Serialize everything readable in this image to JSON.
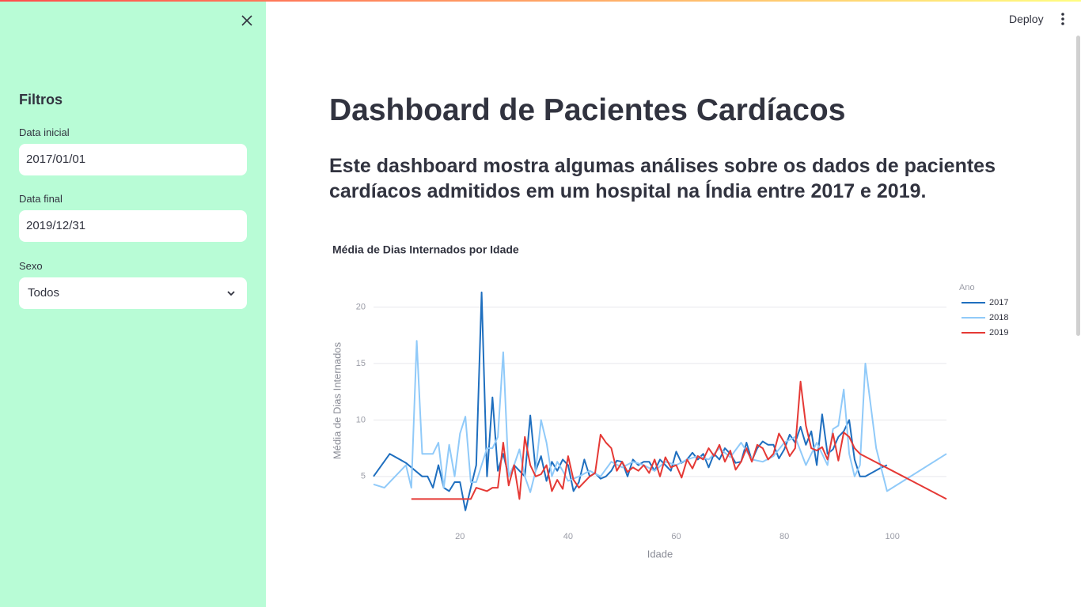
{
  "sidebar": {
    "title": "Filtros",
    "fields": [
      {
        "label": "Data inicial",
        "value": "2017/01/01"
      },
      {
        "label": "Data final",
        "value": "2019/12/31"
      },
      {
        "label": "Sexo",
        "value": "Todos"
      }
    ]
  },
  "toolbar": {
    "deploy": "Deploy"
  },
  "header": {
    "title": "Dashboard de Pacientes Cardíacos",
    "subtitle": "Este dashboard mostra algumas análises sobre os dados de pacientes cardíacos admitidos em um hospital na Índia entre 2017 e 2019."
  },
  "chart_data": {
    "type": "line",
    "title": "Média de Dias Internados por Idade",
    "x_label": "Idade",
    "y_label": "Média de Dias Internados",
    "legend_title": "Ano",
    "legend": "right",
    "grid": true,
    "xlim": [
      4,
      110
    ],
    "xticks": [
      20,
      40,
      60,
      80,
      100
    ],
    "ylim": [
      1,
      21.5
    ],
    "yticks": [
      5,
      10,
      15,
      20
    ],
    "series": [
      {
        "name": "2017",
        "color": "#1f6fbf",
        "x": [
          4,
          7,
          10,
          13,
          14,
          15,
          16,
          17,
          18,
          19,
          20,
          21,
          22,
          23,
          24,
          25,
          26,
          27,
          28,
          29,
          30,
          31,
          32,
          33,
          34,
          35,
          36,
          37,
          38,
          39,
          40,
          41,
          42,
          43,
          44,
          45,
          46,
          47,
          48,
          49,
          50,
          51,
          52,
          53,
          54,
          55,
          56,
          57,
          58,
          59,
          60,
          61,
          62,
          63,
          64,
          65,
          66,
          67,
          68,
          69,
          70,
          71,
          72,
          73,
          74,
          75,
          76,
          77,
          78,
          79,
          80,
          81,
          82,
          83,
          84,
          85,
          86,
          87,
          88,
          89,
          90,
          91,
          92,
          93,
          94,
          95,
          98,
          99
        ],
        "values": [
          5,
          7,
          6.2,
          5,
          5,
          4,
          6,
          4,
          3.7,
          4.5,
          4.5,
          2,
          4,
          6,
          21.3,
          5,
          12,
          5.5,
          7,
          5,
          6,
          5.5,
          5,
          10.4,
          5.5,
          6.8,
          4.6,
          6.3,
          5.5,
          6.5,
          6,
          3.7,
          4.5,
          6.5,
          5,
          5.3,
          4.8,
          5,
          5.5,
          6.4,
          6.3,
          5,
          6.5,
          6,
          6.3,
          6.3,
          5.5,
          6.5,
          6,
          5.5,
          7.2,
          6.2,
          6.5,
          7.1,
          6.5,
          7,
          5.8,
          7,
          6.5,
          7.5,
          7,
          6.2,
          6.3,
          8,
          6.4,
          7.5,
          8.1,
          7.8,
          7.8,
          6.6,
          7.4,
          8.7,
          8,
          9.4,
          7.8,
          9,
          6,
          10.5,
          7,
          7.4,
          8.5,
          9,
          10,
          6.5,
          5,
          5,
          5.8,
          6
        ]
      },
      {
        "name": "2018",
        "color": "#90caf9",
        "x": [
          4,
          6,
          10,
          11,
          12,
          13,
          15,
          16,
          17,
          18,
          19,
          20,
          21,
          22,
          23,
          25,
          26,
          27,
          28,
          29,
          30,
          31,
          32,
          33,
          34,
          35,
          36,
          37,
          38,
          39,
          40,
          42,
          44,
          46,
          48,
          50,
          52,
          54,
          56,
          58,
          60,
          62,
          64,
          66,
          68,
          70,
          72,
          74,
          76,
          78,
          80,
          82,
          84,
          86,
          88,
          89,
          90,
          91,
          92,
          93,
          94,
          95,
          97,
          99,
          110
        ],
        "values": [
          4.3,
          4,
          6,
          4,
          17,
          7,
          7,
          8,
          4,
          7.8,
          5,
          8.8,
          10.3,
          4.5,
          4.5,
          7.5,
          7.5,
          8.5,
          16,
          5,
          6,
          7.4,
          5,
          3.6,
          5.5,
          10,
          8,
          5,
          6.3,
          5.5,
          4.6,
          5,
          5.5,
          5,
          6.3,
          5.8,
          6.3,
          6,
          5.5,
          6.3,
          6,
          6.5,
          6.8,
          6.5,
          7.5,
          6.7,
          8,
          6.5,
          6.3,
          6.8,
          8,
          8.5,
          6,
          8,
          6,
          9.2,
          9.5,
          12.7,
          7,
          5,
          6,
          15,
          7.5,
          3.7,
          7
        ]
      },
      {
        "name": "2019",
        "color": "#e53935",
        "x": [
          11,
          20,
          22,
          23,
          25,
          26,
          27,
          28,
          29,
          30,
          31,
          32,
          33,
          34,
          35,
          36,
          37,
          38,
          39,
          40,
          41,
          42,
          44,
          45,
          46,
          47,
          48,
          49,
          50,
          51,
          52,
          53,
          54,
          55,
          56,
          57,
          58,
          59,
          60,
          61,
          62,
          63,
          64,
          65,
          66,
          67,
          68,
          69,
          70,
          71,
          72,
          73,
          74,
          75,
          76,
          77,
          78,
          79,
          80,
          81,
          82,
          83,
          84,
          85,
          86,
          87,
          88,
          89,
          90,
          91,
          92,
          93,
          94,
          110
        ],
        "values": [
          3,
          3,
          3,
          4,
          3.7,
          4,
          4,
          8,
          4.2,
          6,
          3,
          8.5,
          6,
          5,
          5.2,
          6,
          3.7,
          4.7,
          3.9,
          6.8,
          4.7,
          4,
          5,
          5.3,
          8.7,
          8,
          7.5,
          5.5,
          6.3,
          5.4,
          5.8,
          5.5,
          6,
          5.3,
          6.5,
          5,
          6.7,
          5.8,
          6,
          4.9,
          6.5,
          5.7,
          6.8,
          6.5,
          7.5,
          6.8,
          7.8,
          6.3,
          7.3,
          5.6,
          6.3,
          7.5,
          6.3,
          7.8,
          7.5,
          6.5,
          7,
          8.8,
          8,
          6.8,
          7.5,
          13.4,
          9.5,
          7.5,
          7.3,
          7.6,
          6.5,
          8.8,
          6.4,
          8.9,
          8.5,
          7.5,
          7,
          3
        ]
      }
    ]
  }
}
